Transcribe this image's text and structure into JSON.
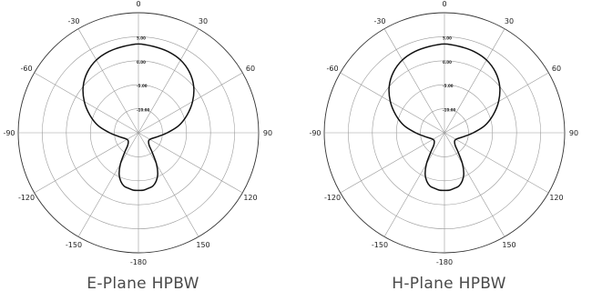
{
  "chart_data": [
    {
      "type": "polar-line",
      "title": "E-Plane HPBW",
      "theta_labels": [
        "0",
        "30",
        "60",
        "90",
        "120",
        "150",
        "-180",
        "-150",
        "-120",
        "-90",
        "-60",
        "-30"
      ],
      "radial_labels": [
        "5.00",
        "0.00",
        "-5.00",
        "-10.00"
      ],
      "series": [
        {
          "theta_deg": [
            0,
            10,
            20,
            30,
            40,
            50,
            60,
            70,
            80,
            90,
            100,
            110,
            120,
            130,
            140,
            145,
            150,
            155,
            160,
            165,
            170,
            175,
            180,
            185,
            190,
            195,
            200,
            205,
            210,
            215,
            220,
            230,
            240,
            250,
            260,
            270,
            280,
            290,
            300,
            310,
            320,
            330,
            340,
            350
          ],
          "r_norm": [
            0.74,
            0.73,
            0.72,
            0.7,
            0.66,
            0.6,
            0.52,
            0.43,
            0.34,
            0.24,
            0.17,
            0.13,
            0.11,
            0.11,
            0.14,
            0.2,
            0.3,
            0.38,
            0.43,
            0.46,
            0.47,
            0.48,
            0.48,
            0.48,
            0.47,
            0.46,
            0.43,
            0.38,
            0.3,
            0.2,
            0.14,
            0.11,
            0.11,
            0.13,
            0.17,
            0.24,
            0.34,
            0.43,
            0.52,
            0.6,
            0.66,
            0.7,
            0.72,
            0.73
          ]
        }
      ]
    },
    {
      "type": "polar-line",
      "title": "H-Plane HPBW",
      "theta_labels": [
        "0",
        "30",
        "60",
        "90",
        "120",
        "150",
        "-180",
        "-150",
        "-120",
        "-90",
        "-60",
        "-30"
      ],
      "radial_labels": [
        "5.00",
        "0.00",
        "-5.00",
        "-10.00"
      ],
      "series": [
        {
          "theta_deg": [
            0,
            10,
            20,
            30,
            40,
            50,
            60,
            70,
            80,
            90,
            100,
            110,
            120,
            130,
            140,
            145,
            150,
            155,
            160,
            165,
            170,
            175,
            180,
            185,
            190,
            195,
            200,
            205,
            210,
            215,
            220,
            230,
            240,
            250,
            260,
            270,
            280,
            290,
            300,
            310,
            320,
            330,
            340,
            350
          ],
          "r_norm": [
            0.74,
            0.73,
            0.72,
            0.7,
            0.66,
            0.6,
            0.52,
            0.43,
            0.34,
            0.24,
            0.17,
            0.13,
            0.11,
            0.11,
            0.14,
            0.2,
            0.3,
            0.38,
            0.43,
            0.46,
            0.47,
            0.48,
            0.48,
            0.48,
            0.47,
            0.46,
            0.43,
            0.38,
            0.3,
            0.2,
            0.14,
            0.11,
            0.11,
            0.13,
            0.17,
            0.24,
            0.34,
            0.43,
            0.52,
            0.6,
            0.66,
            0.7,
            0.72,
            0.73
          ]
        }
      ]
    }
  ]
}
